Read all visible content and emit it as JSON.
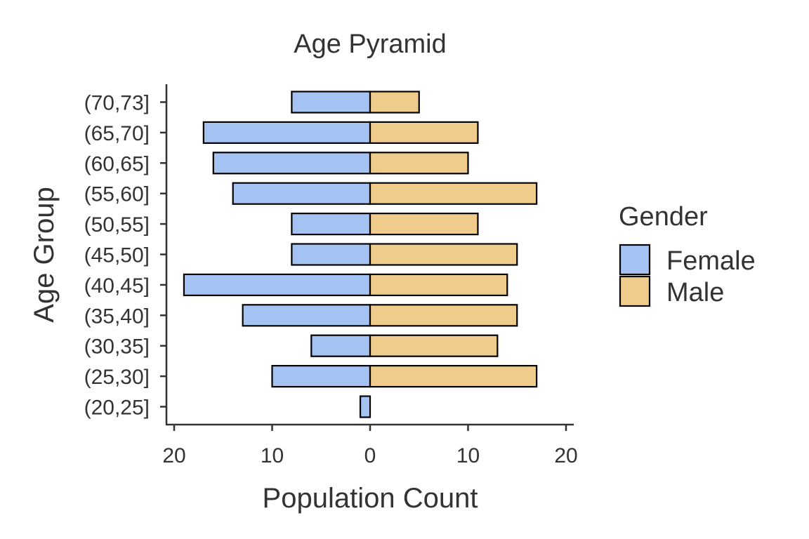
{
  "chart_data": {
    "type": "bar",
    "orientation": "horizontal",
    "title": "Age Pyramid",
    "xlabel": "Population Count",
    "ylabel": "Age Group",
    "xlim": [
      -21,
      21
    ],
    "x_ticks": [
      -20,
      -10,
      0,
      10,
      20
    ],
    "x_tick_labels": [
      "20",
      "10",
      "0",
      "10",
      "20"
    ],
    "categories": [
      "(20,25]",
      "(25,30]",
      "(30,35]",
      "(35,40]",
      "(40,45]",
      "(45,50]",
      "(50,55]",
      "(55,60]",
      "(60,65]",
      "(65,70]",
      "(70,73]"
    ],
    "series": [
      {
        "name": "Female",
        "color": "#A4C3F2",
        "values": [
          1,
          10,
          6,
          13,
          19,
          8,
          8,
          14,
          16,
          17,
          8
        ]
      },
      {
        "name": "Male",
        "color": "#F0CC8C",
        "values": [
          0,
          17,
          13,
          15,
          14,
          15,
          11,
          17,
          10,
          11,
          5
        ]
      }
    ],
    "legend": {
      "title": "Gender",
      "position": "right"
    },
    "grid": false
  }
}
